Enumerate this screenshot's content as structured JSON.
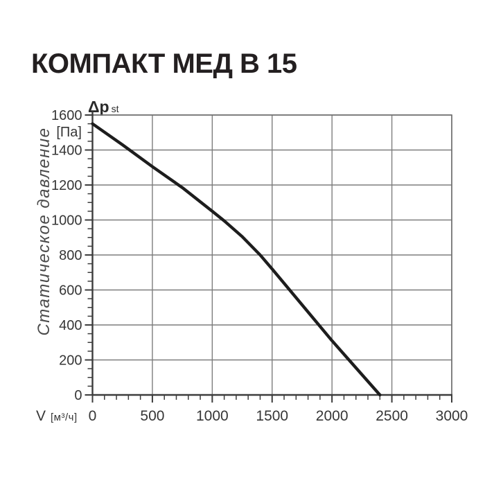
{
  "page": {
    "title": "КОМПАКТ МЕД В 15",
    "background_color": "#ffffff"
  },
  "chart_data": {
    "type": "line",
    "title": "КОМПАКТ МЕД В 15",
    "xlabel_symbol": "V",
    "xlabel_unit": "[м³/ч]",
    "ylabel_symbol": "Δp",
    "ylabel_subscript": "st",
    "ylabel_unit": "[Па]",
    "ylabel_axis_title": "Статическое давление",
    "xlim": [
      0,
      3000
    ],
    "ylim": [
      0,
      1600
    ],
    "x_major_step": 500,
    "x_minor_step": 100,
    "y_major_step": 200,
    "y_minor_step": 50,
    "x_tick_labels": [
      "0",
      "500",
      "1000",
      "1500",
      "2000",
      "2500",
      "3000"
    ],
    "y_tick_labels": [
      "0",
      "200",
      "400",
      "600",
      "800",
      "1000",
      "1200",
      "1400",
      "1600"
    ],
    "grid": "on",
    "legend": "none",
    "series": [
      {
        "name": "fan-performance-curve",
        "x": [
          0,
          250,
          500,
          750,
          1000,
          1100,
          1250,
          1400,
          1500,
          1750,
          2000,
          2200,
          2400
        ],
        "y": [
          1550,
          1430,
          1305,
          1185,
          1050,
          995,
          905,
          800,
          720,
          515,
          310,
          155,
          0
        ]
      }
    ],
    "colors": {
      "curve": "#1d1d1d",
      "grid": "#7d7d7d",
      "border": "#6f6f6f",
      "axis": "#3c3c3c",
      "tick_text": "#363636",
      "title_text": "#231f20",
      "axis_title_text": "#4a4a4a"
    }
  }
}
